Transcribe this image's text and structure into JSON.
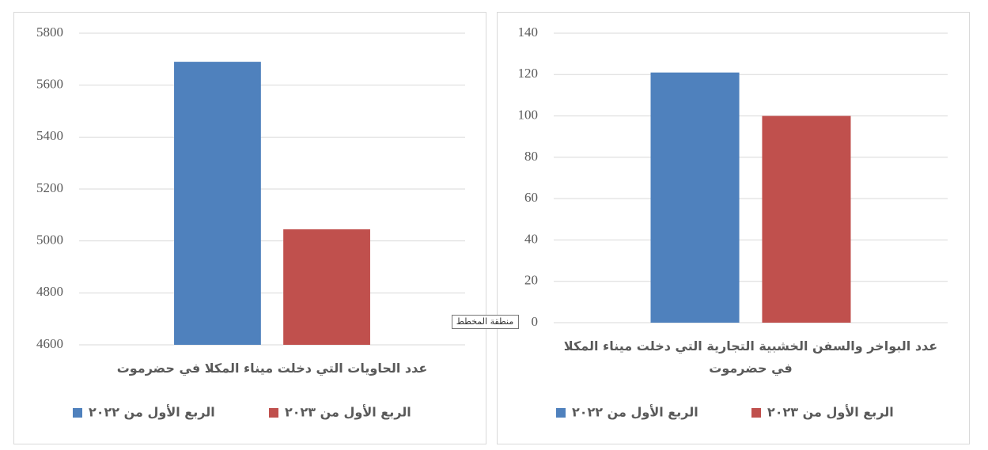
{
  "chart_data": [
    {
      "type": "bar",
      "categories": [
        "عدد الحاويات التي دخلت ميناء المكلا في حضرموت"
      ],
      "series": [
        {
          "name": "الربع الأول من ٢٠٢٢",
          "color": "#4f81bd",
          "values": [
            5690
          ]
        },
        {
          "name": "الربع الأول من ٢٠٢٣",
          "color": "#c0504d",
          "values": [
            5045
          ]
        }
      ],
      "ylim": [
        4600,
        5800
      ],
      "yticks": [
        4600,
        4800,
        5000,
        5200,
        5400,
        5600,
        5800
      ],
      "grid": true
    },
    {
      "type": "bar",
      "categories": [
        "عدد  البواخر والسفن الخشبية التجارية التي دخلت ميناء المكلا في حضرموت"
      ],
      "series": [
        {
          "name": "الربع الأول من ٢٠٢٢",
          "color": "#4f81bd",
          "values": [
            121
          ]
        },
        {
          "name": "الربع الأول من ٢٠٢٣",
          "color": "#c0504d",
          "values": [
            100
          ]
        }
      ],
      "ylim": [
        0,
        140
      ],
      "yticks": [
        0,
        20,
        40,
        60,
        80,
        100,
        120,
        140
      ],
      "grid": true
    }
  ],
  "tooltip": "منطقة المخطط"
}
